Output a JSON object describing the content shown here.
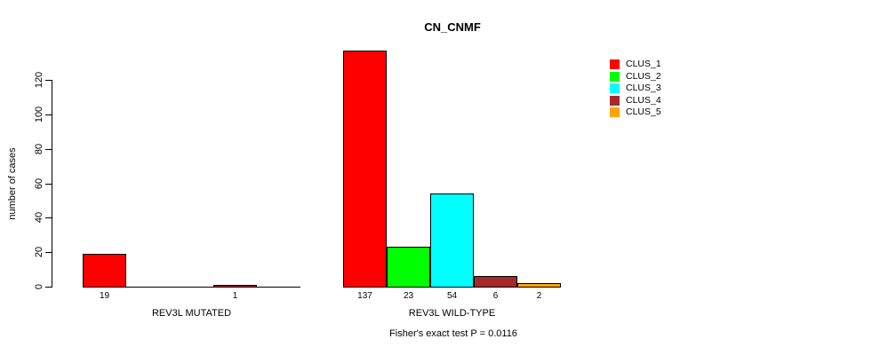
{
  "title": "CN_CNMF",
  "subtitle": "Fisher's exact test P = 0.0116",
  "chart_data": {
    "type": "bar",
    "title": "CN_CNMF",
    "subtitle": "Fisher's exact test P = 0.0116",
    "xlabel": "",
    "ylabel": "number of cases",
    "yticks": [
      0,
      20,
      40,
      60,
      80,
      100,
      120
    ],
    "ylim": [
      0,
      120
    ],
    "grid": false,
    "bar_outline_color": "#000000",
    "legend_position": "right",
    "series": [
      {
        "name": "CLUS_1",
        "color": "#FF0000"
      },
      {
        "name": "CLUS_2",
        "color": "#00FF00"
      },
      {
        "name": "CLUS_3",
        "color": "#00FFFF"
      },
      {
        "name": "CLUS_4",
        "color": "#A52A2A"
      },
      {
        "name": "CLUS_5",
        "color": "#FFA500"
      }
    ],
    "categories": [
      "REV3L MUTATED",
      "REV3L WILD-TYPE"
    ],
    "groups": [
      {
        "label": "REV3L MUTATED",
        "values": [
          19,
          0,
          0,
          1,
          0
        ]
      },
      {
        "label": "REV3L WILD-TYPE",
        "values": [
          137,
          23,
          54,
          6,
          2
        ]
      }
    ],
    "bar_value_labels_shown_for_nonzero_only": true,
    "annotation": "Fisher's exact test P = 0.0116"
  }
}
